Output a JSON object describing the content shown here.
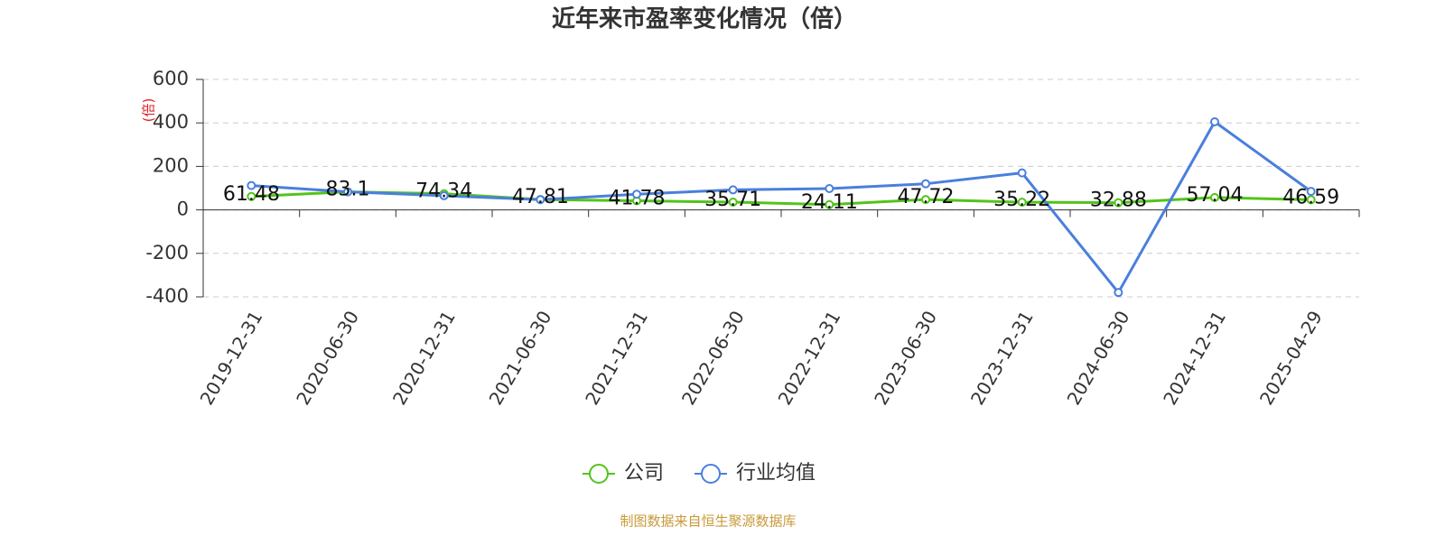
{
  "chart_data": {
    "type": "line",
    "title": "近年来市盈率变化情况（倍）",
    "y_axis_label": "(倍)",
    "source": "制图数据来自恒生聚源数据库",
    "categories": [
      "2019-12-31",
      "2020-06-30",
      "2020-12-31",
      "2021-06-30",
      "2021-12-31",
      "2022-06-30",
      "2022-12-31",
      "2023-06-30",
      "2023-12-31",
      "2024-06-30",
      "2024-12-31",
      "2025-04-29"
    ],
    "series": [
      {
        "name": "公司",
        "color": "#52c41a",
        "show_labels": true,
        "values": [
          61.48,
          83.1,
          74.34,
          47.81,
          41.78,
          35.71,
          24.11,
          47.72,
          35.22,
          32.88,
          57.04,
          46.59
        ]
      },
      {
        "name": "行业均值",
        "color": "#4a7fdc",
        "show_labels": false,
        "values": [
          112,
          83,
          65,
          47,
          72,
          92,
          98,
          120,
          170,
          -380,
          405,
          85
        ]
      }
    ],
    "ylim": [
      -400,
      600
    ],
    "yticks": [
      -400,
      -200,
      0,
      200,
      400,
      600
    ],
    "grid": true,
    "legend": "bottom"
  }
}
